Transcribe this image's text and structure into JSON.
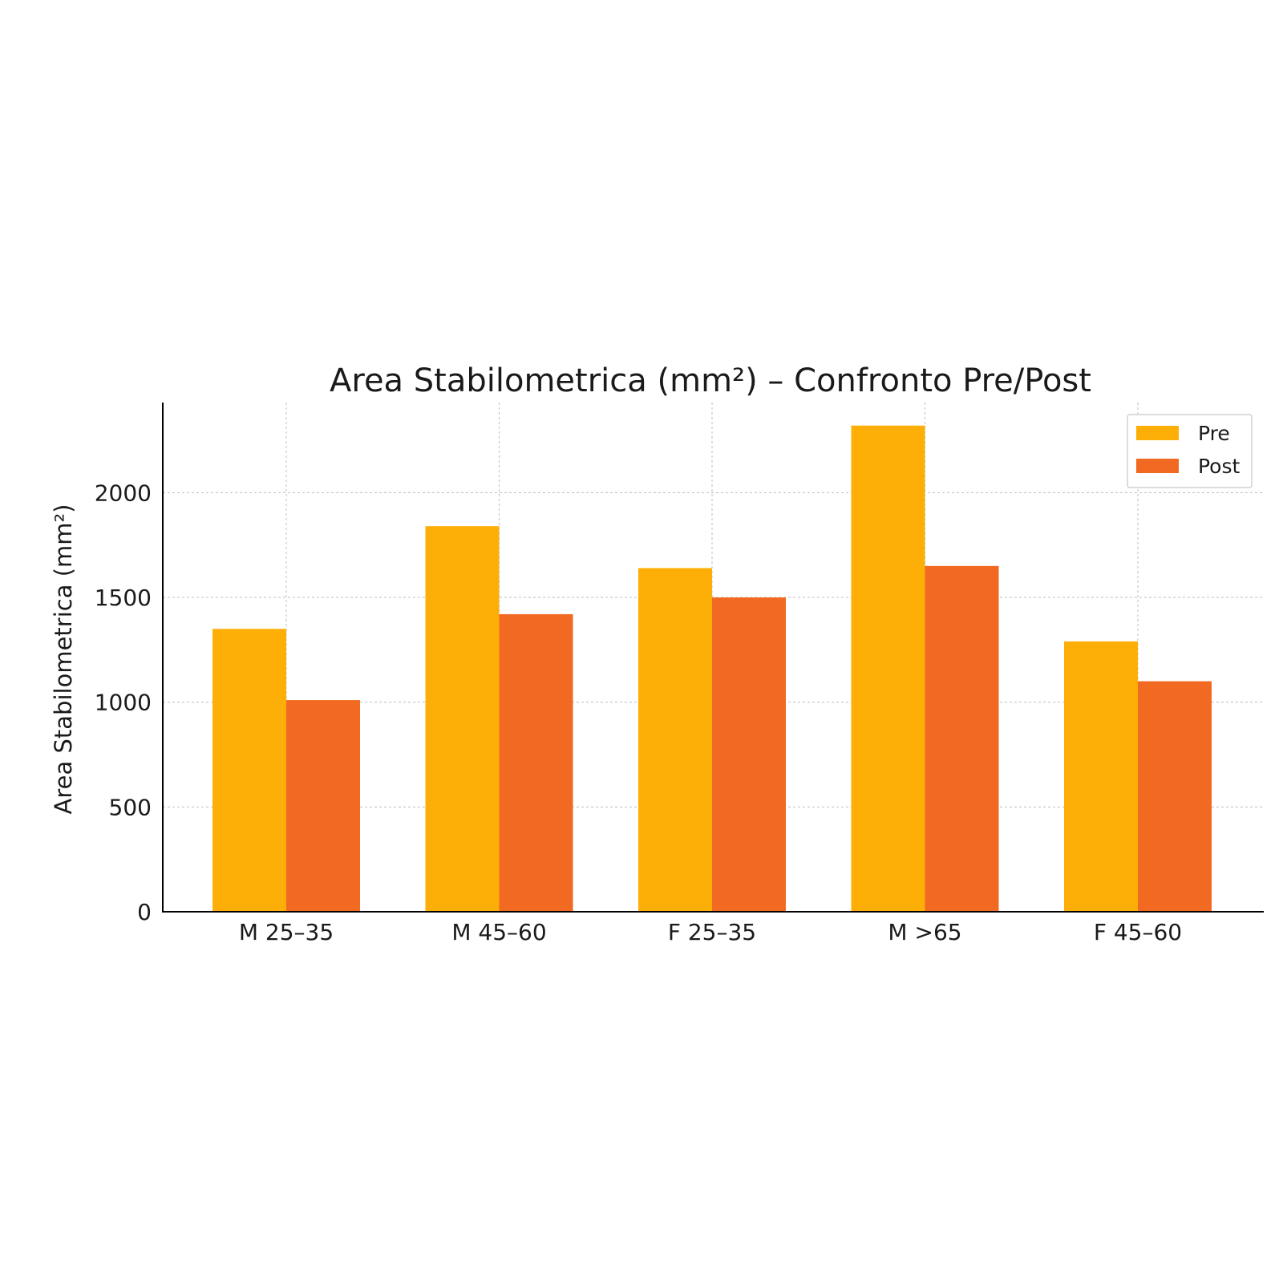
{
  "chart_data": {
    "type": "bar",
    "title": "Area Stabilometrica (mm²) – Confronto Pre/Post",
    "xlabel": "",
    "ylabel": "Area Stabilometrica (mm²)",
    "categories": [
      "M 25–35",
      "M 45–60",
      "F 25–35",
      "M >65",
      "F 45–60"
    ],
    "series": [
      {
        "name": "Pre",
        "color": "#FDAF07",
        "values": [
          1350,
          1840,
          1640,
          2320,
          1290
        ]
      },
      {
        "name": "Post",
        "color": "#F26A21",
        "values": [
          1010,
          1420,
          1500,
          1650,
          1100
        ]
      }
    ],
    "ylim": [
      0,
      2430
    ],
    "yticks": [
      0,
      500,
      1000,
      1500,
      2000
    ],
    "grid": true,
    "legend_position": "top-right"
  }
}
